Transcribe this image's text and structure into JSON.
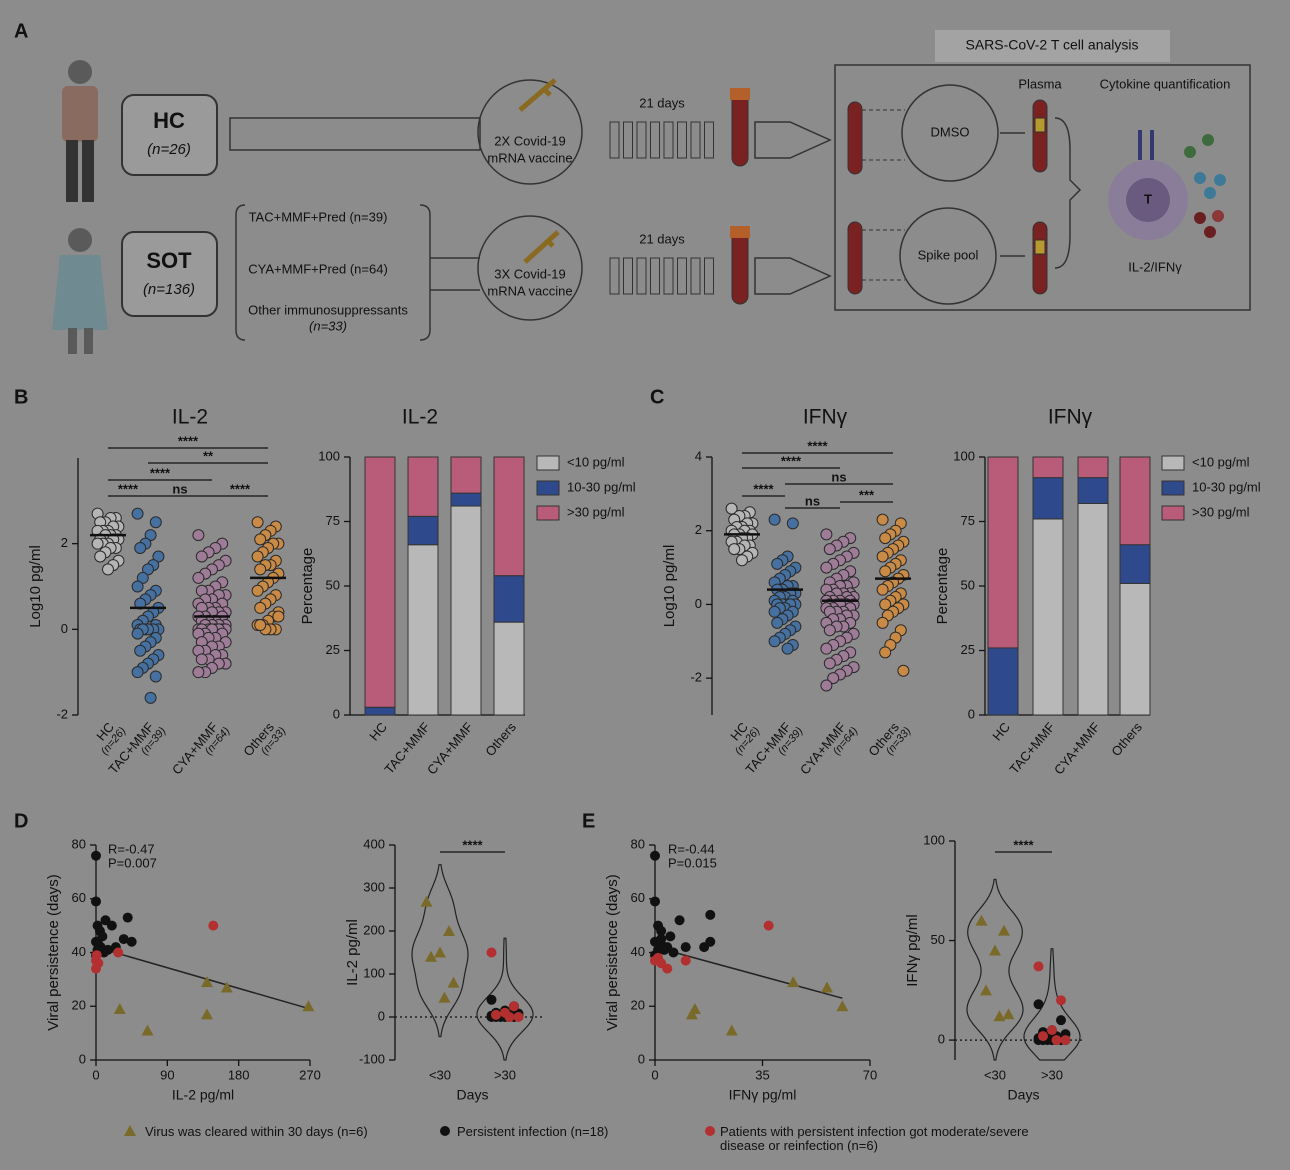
{
  "panel_labels": [
    "B",
    "C",
    "D",
    "E"
  ],
  "diagram": {
    "label": "A",
    "hc": {
      "name": "HC",
      "n": "(n=26)"
    },
    "sot": {
      "name": "SOT",
      "n": "(n=136)"
    },
    "regimens": [
      "TAC+MMF+Pred (n=39)",
      "CYA+MMF+Pred (n=64)",
      "Other immunosuppressants",
      "(n=33)"
    ],
    "vaccines": [
      [
        "2X Covid-19",
        "mRNA vaccine"
      ],
      [
        "3X Covid-19",
        "mRNA vaccine"
      ]
    ],
    "intervals": [
      "21 days",
      "21 days"
    ],
    "analysis": {
      "title": "SARS-CoV-2 T cell analysis",
      "plasma": "Plasma",
      "quantification": "Cytokine quantification",
      "conditions": [
        "DMSO",
        "Spike pool"
      ],
      "cell": "T",
      "readout": "IL-2/IFNγ"
    }
  },
  "chart_data": [
    {
      "type": "dotplot",
      "title": "IL-2",
      "ylabel": "Log10 pg/ml",
      "ylim": [
        -2,
        4
      ],
      "yticks": [
        -2,
        0,
        2
      ],
      "categories": [
        "HC",
        "TAC+MMF",
        "CYA+MMF",
        "Others"
      ],
      "category_notes": [
        "(n=26)",
        "(n=39)",
        "(n=64)",
        "(n=33)"
      ],
      "groups": [
        {
          "color": "#b5b5b5",
          "mean": 2.2,
          "values": [
            2.7,
            2.6,
            2.6,
            2.5,
            2.5,
            2.4,
            2.4,
            2.3,
            2.3,
            2.3,
            2.2,
            2.2,
            2.2,
            2.1,
            2.1,
            2.1,
            2.0,
            2.0,
            2.0,
            1.9,
            1.9,
            1.8,
            1.7,
            1.6,
            1.5,
            1.4
          ]
        },
        {
          "color": "#46709f",
          "mean": 0.5,
          "values": [
            2.7,
            2.5,
            2.2,
            2.0,
            1.9,
            1.7,
            1.5,
            1.4,
            1.2,
            1.0,
            0.9,
            0.8,
            0.7,
            0.6,
            0.5,
            0.4,
            0.3,
            0.2,
            0.1,
            0.1,
            0,
            0,
            0,
            0,
            0,
            0,
            0,
            -0.1,
            -0.2,
            -0.3,
            -0.4,
            -0.5,
            -0.6,
            -0.7,
            -0.8,
            -0.9,
            -1.0,
            -1.1,
            -1.6
          ]
        },
        {
          "color": "#9e7c98",
          "mean": 0.3,
          "values": [
            2.2,
            2.0,
            1.9,
            1.8,
            1.7,
            1.6,
            1.5,
            1.4,
            1.3,
            1.2,
            1.1,
            1.0,
            0.9,
            0.9,
            0.8,
            0.8,
            0.7,
            0.7,
            0.6,
            0.6,
            0.5,
            0.5,
            0.5,
            0.4,
            0.4,
            0.4,
            0.3,
            0.3,
            0.3,
            0.2,
            0.2,
            0.2,
            0.1,
            0.1,
            0.1,
            0.1,
            0,
            0,
            0,
            0,
            0,
            0,
            0,
            0,
            -0.1,
            -0.1,
            -0.1,
            -0.2,
            -0.2,
            -0.3,
            -0.3,
            -0.4,
            -0.4,
            -0.5,
            -0.5,
            -0.6,
            -0.6,
            -0.7,
            -0.7,
            -0.8,
            -0.8,
            -0.9,
            -1.0,
            -1.0
          ]
        },
        {
          "color": "#c88a45",
          "mean": 1.2,
          "values": [
            2.5,
            2.4,
            2.3,
            2.2,
            2.1,
            2.0,
            2.0,
            1.9,
            1.8,
            1.7,
            1.6,
            1.5,
            1.5,
            1.4,
            1.3,
            1.2,
            1.1,
            1.0,
            0.9,
            0.8,
            0.7,
            0.6,
            0.5,
            0.4,
            0.3,
            0.2,
            0.1,
            0.1,
            0,
            0,
            0,
            0.1,
            0.3
          ]
        }
      ],
      "comparisons": [
        {
          "from": 0,
          "to": 3,
          "label": "****"
        },
        {
          "from": 1,
          "to": 3,
          "label": "**"
        },
        {
          "from": 0,
          "to": 2,
          "label": "****"
        },
        {
          "from": 0,
          "to": 1,
          "label": "****"
        },
        {
          "from": 1,
          "to": 2,
          "label": "ns"
        },
        {
          "from": 2,
          "to": 3,
          "label": "****"
        }
      ]
    },
    {
      "type": "stacked_bar",
      "title": "IL-2",
      "ylabel": "Percentage",
      "ylim": [
        0,
        100
      ],
      "yticks": [
        0,
        25,
        50,
        75,
        100
      ],
      "categories": [
        "HC",
        "TAC+MMF",
        "CYA+MMF",
        "Others"
      ],
      "series": [
        {
          "name": "<10 pg/ml",
          "color": "#b8b8b8",
          "values": [
            0,
            66,
            81,
            36
          ]
        },
        {
          "name": "10-30 pg/ml",
          "color": "#2f4a8c",
          "values": [
            3,
            11,
            5,
            18
          ]
        },
        {
          "name": ">30 pg/ml",
          "color": "#b85c7a",
          "values": [
            97,
            23,
            14,
            46
          ]
        }
      ]
    },
    {
      "type": "dotplot",
      "title": "IFNγ",
      "ylabel": "Log10 pg/ml",
      "ylim": [
        -3,
        4
      ],
      "yticks": [
        -2,
        0,
        2,
        4
      ],
      "categories": [
        "HC",
        "TAC+MMF",
        "CYA+MMF",
        "Others"
      ],
      "category_notes": [
        "(n=26)",
        "(n=39)",
        "(n=64)",
        "(n=33)"
      ],
      "groups": [
        {
          "color": "#b5b5b5",
          "mean": 1.9,
          "values": [
            2.6,
            2.5,
            2.4,
            2.4,
            2.3,
            2.2,
            2.2,
            2.1,
            2.1,
            2.0,
            2.0,
            2.0,
            1.9,
            1.9,
            1.9,
            1.8,
            1.8,
            1.7,
            1.7,
            1.6,
            1.6,
            1.5,
            1.5,
            1.4,
            1.3,
            1.2
          ]
        },
        {
          "color": "#46709f",
          "mean": 0.4,
          "values": [
            2.3,
            2.2,
            1.3,
            1.2,
            1.1,
            1.0,
            0.9,
            0.8,
            0.7,
            0.6,
            0.5,
            0.5,
            0.4,
            0.4,
            0.3,
            0.3,
            0.2,
            0.2,
            0.1,
            0.1,
            0,
            0,
            0,
            0,
            0,
            -0.1,
            -0.1,
            -0.2,
            -0.2,
            -0.3,
            -0.4,
            -0.5,
            -0.6,
            -0.7,
            -0.8,
            -0.9,
            -1.0,
            -1.1,
            -1.2
          ]
        },
        {
          "color": "#9e7c98",
          "mean": 0.1,
          "values": [
            1.9,
            1.8,
            1.7,
            1.6,
            1.5,
            1.4,
            1.3,
            1.2,
            1.1,
            1.0,
            0.9,
            0.8,
            0.7,
            0.6,
            0.6,
            0.5,
            0.5,
            0.4,
            0.4,
            0.3,
            0.3,
            0.3,
            0.2,
            0.2,
            0.2,
            0.1,
            0.1,
            0.1,
            0.1,
            0,
            0,
            0,
            0,
            0,
            0,
            -0.1,
            -0.1,
            -0.1,
            -0.2,
            -0.2,
            -0.2,
            -0.3,
            -0.3,
            -0.4,
            -0.4,
            -0.5,
            -0.5,
            -0.6,
            -0.6,
            -0.7,
            -0.8,
            -0.9,
            -1.0,
            -1.1,
            -1.2,
            -1.3,
            -1.4,
            -1.5,
            -1.6,
            -1.7,
            -1.8,
            -1.9,
            -2.0,
            -2.2
          ]
        },
        {
          "color": "#c88a45",
          "mean": 0.7,
          "values": [
            2.3,
            2.2,
            2.0,
            1.9,
            1.8,
            1.7,
            1.6,
            1.5,
            1.4,
            1.3,
            1.2,
            1.1,
            1.0,
            0.9,
            0.8,
            0.7,
            0.6,
            0.5,
            0.4,
            0.3,
            0.2,
            0.1,
            0,
            0,
            -0.1,
            -0.2,
            -0.3,
            -0.5,
            -0.7,
            -0.9,
            -1.1,
            -1.3,
            -1.8
          ]
        }
      ],
      "comparisons": [
        {
          "from": 0,
          "to": 3,
          "label": "****"
        },
        {
          "from": 0,
          "to": 2,
          "label": "****"
        },
        {
          "from": 1,
          "to": 3,
          "label": "ns"
        },
        {
          "from": 0,
          "to": 1,
          "label": "****"
        },
        {
          "from": 1,
          "to": 2,
          "label": "ns"
        },
        {
          "from": 2,
          "to": 3,
          "label": "***"
        }
      ]
    },
    {
      "type": "stacked_bar",
      "title": "IFNγ",
      "ylabel": "Percentage",
      "ylim": [
        0,
        100
      ],
      "yticks": [
        0,
        25,
        50,
        75,
        100
      ],
      "categories": [
        "HC",
        "TAC+MMF",
        "CYA+MMF",
        "Others"
      ],
      "series": [
        {
          "name": "<10 pg/ml",
          "color": "#b8b8b8",
          "values": [
            0,
            76,
            82,
            51
          ]
        },
        {
          "name": "10-30 pg/ml",
          "color": "#2f4a8c",
          "values": [
            26,
            16,
            10,
            15
          ]
        },
        {
          "name": ">30 pg/ml",
          "color": "#b85c7a",
          "values": [
            74,
            8,
            8,
            34
          ]
        }
      ]
    },
    {
      "type": "scatter",
      "xlabel": "IL-2 pg/ml",
      "ylabel": "Viral persistence (days)",
      "xlim": [
        0,
        270
      ],
      "xticks": [
        0,
        90,
        180,
        270
      ],
      "ylim": [
        0,
        80
      ],
      "yticks": [
        0,
        20,
        40,
        60,
        80
      ],
      "annotations": [
        "R=-0.47",
        "P=0.007"
      ],
      "fit": {
        "x": [
          0,
          270
        ],
        "y": [
          42,
          19
        ]
      },
      "series": [
        {
          "name": "Virus was cleared within 30 days (n=6)",
          "marker": "triangle",
          "color": "#7a6a2a",
          "x": [
            30,
            65,
            140,
            140,
            165,
            268
          ],
          "y": [
            19,
            11,
            17,
            29,
            27,
            20
          ]
        },
        {
          "name": "Persistent infection (n=18)",
          "marker": "circle",
          "color": "#111111",
          "x": [
            0,
            0,
            2,
            5,
            0,
            3,
            8,
            12,
            15,
            20,
            25,
            35,
            40,
            45,
            2,
            6,
            10,
            0
          ],
          "y": [
            76,
            59,
            50,
            48,
            44,
            43,
            46,
            52,
            41,
            50,
            42,
            45,
            53,
            44,
            41,
            42,
            40,
            39
          ]
        },
        {
          "name": "Patients with persistent infection got moderate/severe disease or reinfection (n=6)",
          "marker": "circle",
          "color": "#b33030",
          "x": [
            0,
            0,
            3,
            28,
            148,
            1
          ],
          "y": [
            37,
            34,
            36,
            40,
            50,
            39
          ]
        }
      ]
    },
    {
      "type": "violin",
      "xlabel": "Days",
      "ylabel": "IL-2 pg/ml",
      "ylim": [
        -100,
        400
      ],
      "yticks": [
        -100,
        0,
        100,
        200,
        300,
        400
      ],
      "categories": [
        "<30",
        ">30"
      ],
      "comparisons": [
        {
          "from": 0,
          "to": 1,
          "label": "****"
        }
      ],
      "series": [
        {
          "marker": "triangle",
          "color": "#7a6a2a",
          "category": 0,
          "values": [
            268,
            200,
            150,
            140,
            80,
            45
          ]
        },
        {
          "marker": "circle",
          "color": "#111111",
          "category": 1,
          "values": [
            40,
            25,
            15,
            10,
            8,
            5,
            5,
            3,
            2,
            2,
            1,
            1,
            0,
            0,
            0,
            0,
            0,
            0
          ]
        },
        {
          "marker": "circle",
          "color": "#b33030",
          "category": 1,
          "values": [
            150,
            25,
            10,
            5,
            0,
            0
          ]
        }
      ]
    },
    {
      "type": "scatter",
      "xlabel": "IFNγ pg/ml",
      "ylabel": "Viral persistence (days)",
      "xlim": [
        0,
        70
      ],
      "xticks": [
        0,
        35,
        70
      ],
      "ylim": [
        0,
        80
      ],
      "yticks": [
        0,
        20,
        40,
        60,
        80
      ],
      "annotations": [
        "R=-0.44",
        "P=0.015"
      ],
      "fit": {
        "x": [
          0,
          61
        ],
        "y": [
          42,
          23
        ]
      },
      "series": [
        {
          "marker": "triangle",
          "color": "#7a6a2a",
          "x": [
            12,
            13,
            25,
            45,
            56,
            61
          ],
          "y": [
            17,
            19,
            11,
            29,
            27,
            20
          ]
        },
        {
          "marker": "circle",
          "color": "#111111",
          "x": [
            0,
            0,
            1,
            2,
            0,
            2,
            5,
            8,
            16,
            18,
            18,
            3,
            1,
            0,
            4,
            6,
            2,
            10
          ],
          "y": [
            76,
            59,
            50,
            48,
            44,
            43,
            46,
            52,
            42,
            54,
            44,
            41,
            41,
            39,
            42,
            40,
            45,
            42
          ]
        },
        {
          "marker": "circle",
          "color": "#b33030",
          "x": [
            0,
            2,
            4,
            10,
            37,
            1
          ],
          "y": [
            37,
            36,
            34,
            37,
            50,
            38
          ]
        }
      ]
    },
    {
      "type": "violin",
      "xlabel": "Days",
      "ylabel": "IFNγ pg/ml",
      "ylim": [
        -10,
        100
      ],
      "yticks": [
        0,
        50,
        100
      ],
      "categories": [
        "<30",
        ">30"
      ],
      "comparisons": [
        {
          "from": 0,
          "to": 1,
          "label": "****"
        }
      ],
      "series": [
        {
          "marker": "triangle",
          "color": "#7a6a2a",
          "category": 0,
          "values": [
            60,
            55,
            45,
            25,
            13,
            12
          ]
        },
        {
          "marker": "circle",
          "color": "#111111",
          "category": 1,
          "values": [
            18,
            10,
            5,
            4,
            3,
            2,
            2,
            1,
            1,
            0,
            0,
            0,
            0,
            0,
            0,
            0,
            0,
            0
          ]
        },
        {
          "marker": "circle",
          "color": "#b33030",
          "category": 1,
          "values": [
            37,
            20,
            5,
            2,
            0,
            0
          ]
        }
      ]
    }
  ]
}
